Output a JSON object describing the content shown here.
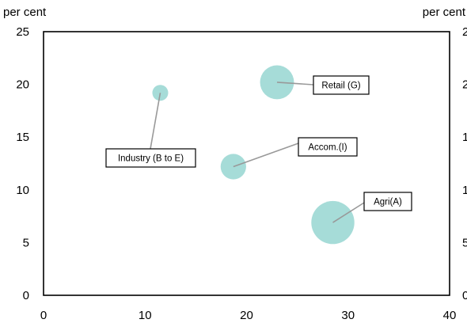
{
  "chart_data": {
    "type": "scatter",
    "title": "",
    "xlabel": "",
    "ylabel_left": "per cent",
    "ylabel_right": "per cent",
    "xlim": [
      0,
      40
    ],
    "ylim": [
      0,
      25
    ],
    "x_ticks": [
      0,
      10,
      20,
      30,
      40
    ],
    "y_ticks": [
      0,
      5,
      10,
      15,
      20,
      25
    ],
    "grid": false,
    "legend": "none",
    "bubble_color": "#a6dcd8",
    "points": [
      {
        "label": "Industry (B to E)",
        "x": 11.5,
        "y": 19.2,
        "size": 1.0
      },
      {
        "label": "Retail (G)",
        "x": 23.0,
        "y": 20.2,
        "size": 4.6
      },
      {
        "label": "Accom.(I)",
        "x": 18.7,
        "y": 12.2,
        "size": 2.6
      },
      {
        "label": "Agri(A)",
        "x": 28.5,
        "y": 6.9,
        "size": 7.4
      }
    ]
  }
}
